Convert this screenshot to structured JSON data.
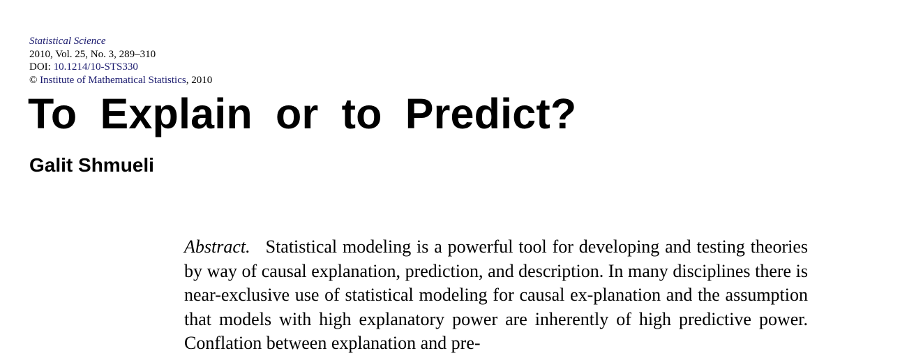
{
  "header": {
    "journal": "Statistical Science",
    "volume_line": "2010, Vol. 25, No. 3, 289–310",
    "doi_prefix": "DOI: ",
    "doi": "10.1214/10-STS330",
    "copyright_symbol": "© ",
    "publisher": "Institute of Mathematical Statistics",
    "year_suffix": ", 2010"
  },
  "title": "To Explain or to Predict?",
  "author": "Galit Shmueli",
  "abstract": {
    "label": "Abstract.",
    "text": "Statistical modeling is a powerful tool for developing and testing theories by way of causal explanation, prediction, and description. In many disciplines there is near-exclusive use of statistical modeling for causal ex-planation and the assumption that models with high explanatory power are inherently of high predictive power. Conflation between explanation and pre-"
  }
}
